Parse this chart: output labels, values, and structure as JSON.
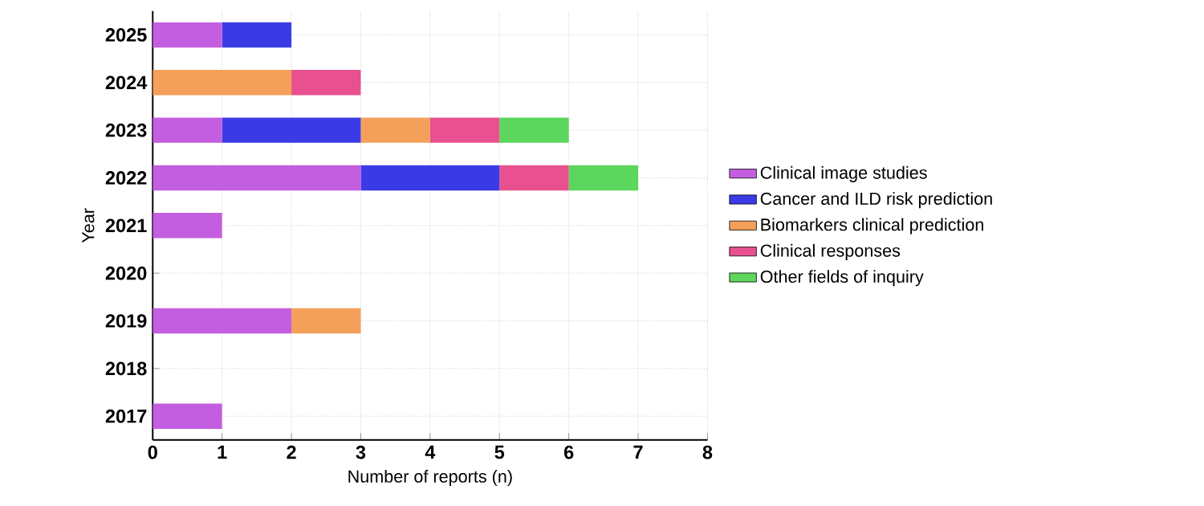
{
  "chart_data": {
    "type": "bar",
    "orientation": "horizontal",
    "stacked": true,
    "xlabel": "Number of reports (n)",
    "ylabel": "Year",
    "categories": [
      "2025",
      "2024",
      "2023",
      "2022",
      "2021",
      "2020",
      "2019",
      "2018",
      "2017"
    ],
    "series": [
      {
        "name": "Clinical image studies",
        "color": "#c45ee0",
        "values": [
          1,
          0,
          1,
          3,
          1,
          0,
          2,
          0,
          1
        ]
      },
      {
        "name": "Cancer and ILD risk prediction",
        "color": "#3b3be6",
        "values": [
          1,
          0,
          2,
          2,
          0,
          0,
          0,
          0,
          0
        ]
      },
      {
        "name": "Biomarkers clinical prediction",
        "color": "#f5a05a",
        "values": [
          0,
          2,
          1,
          0,
          0,
          0,
          1,
          0,
          0
        ]
      },
      {
        "name": "Clinical responses",
        "color": "#e8508f",
        "values": [
          0,
          1,
          1,
          1,
          0,
          0,
          0,
          0,
          0
        ]
      },
      {
        "name": "Other fields of inquiry",
        "color": "#5cd65c",
        "values": [
          0,
          0,
          1,
          1,
          0,
          0,
          0,
          0,
          0
        ]
      }
    ],
    "xlim": [
      0,
      8
    ],
    "xticks": [
      0,
      1,
      2,
      3,
      4,
      5,
      6,
      7,
      8
    ],
    "grid": true,
    "legend": "right"
  }
}
